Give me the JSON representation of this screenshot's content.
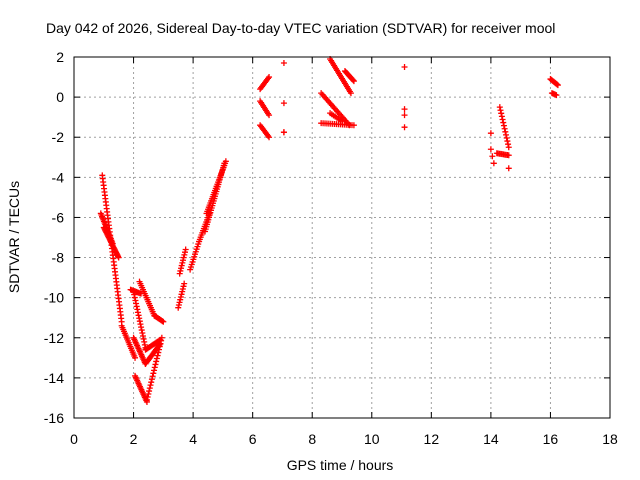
{
  "chart_data": {
    "type": "scatter",
    "title": "Day 042 of 2026, Sidereal Day-to-day VTEC variation (SDTVAR) for receiver mool",
    "xlabel": "GPS time / hours",
    "ylabel": "SDTVAR / TECUs",
    "xlim": [
      0,
      18
    ],
    "ylim": [
      -16,
      2
    ],
    "xticks": [
      0,
      2,
      4,
      6,
      8,
      10,
      12,
      14,
      16,
      18
    ],
    "yticks": [
      -16,
      -14,
      -12,
      -10,
      -8,
      -6,
      -4,
      -2,
      0,
      2
    ],
    "xtick_labels": [
      "0",
      "2",
      "4",
      "6",
      "8",
      "10",
      "12",
      "14",
      "16",
      "18"
    ],
    "ytick_labels": [
      "-16",
      "-14",
      "-12",
      "-10",
      "-8",
      "-6",
      "-4",
      "-2",
      "0",
      "2"
    ],
    "grid": true,
    "marker": "+",
    "marker_color": "#ff0000",
    "series": [
      {
        "name": "SDTVAR",
        "segments": [
          {
            "x0": 0.95,
            "x1": 1.6,
            "y0": -3.9,
            "y1": -11.2,
            "n": 45
          },
          {
            "x0": 1.0,
            "x1": 1.5,
            "y0": -6.5,
            "y1": -8.0,
            "n": 25
          },
          {
            "x0": 0.9,
            "x1": 1.3,
            "y0": -5.8,
            "y1": -7.3,
            "n": 20
          },
          {
            "x0": 1.6,
            "x1": 2.05,
            "y0": -11.4,
            "y1": -13.0,
            "n": 18
          },
          {
            "x0": 2.05,
            "x1": 2.45,
            "y0": -13.9,
            "y1": -15.2,
            "n": 18
          },
          {
            "x0": 2.45,
            "x1": 2.95,
            "y0": -15.1,
            "y1": -12.0,
            "n": 22
          },
          {
            "x0": 2.0,
            "x1": 2.4,
            "y0": -12.0,
            "y1": -13.3,
            "n": 18
          },
          {
            "x0": 2.4,
            "x1": 2.9,
            "y0": -13.3,
            "y1": -12.3,
            "n": 18
          },
          {
            "x0": 2.0,
            "x1": 2.4,
            "y0": -9.7,
            "y1": -12.5,
            "n": 20
          },
          {
            "x0": 2.4,
            "x1": 2.9,
            "y0": -12.6,
            "y1": -12.1,
            "n": 15
          },
          {
            "x0": 1.9,
            "x1": 2.25,
            "y0": -9.6,
            "y1": -9.8,
            "n": 10
          },
          {
            "x0": 2.2,
            "x1": 2.7,
            "y0": -9.2,
            "y1": -10.9,
            "n": 18
          },
          {
            "x0": 2.7,
            "x1": 3.0,
            "y0": -10.9,
            "y1": -11.2,
            "n": 10
          },
          {
            "x0": 3.5,
            "x1": 3.7,
            "y0": -10.5,
            "y1": -9.3,
            "n": 10
          },
          {
            "x0": 3.55,
            "x1": 3.75,
            "y0": -8.8,
            "y1": -7.6,
            "n": 10
          },
          {
            "x0": 3.9,
            "x1": 4.2,
            "y0": -8.6,
            "y1": -7.2,
            "n": 12
          },
          {
            "x0": 4.2,
            "x1": 4.55,
            "y0": -7.2,
            "y1": -5.8,
            "n": 14
          },
          {
            "x0": 4.4,
            "x1": 5.05,
            "y0": -6.7,
            "y1": -3.3,
            "n": 30
          },
          {
            "x0": 4.45,
            "x1": 5.1,
            "y0": -5.8,
            "y1": -3.2,
            "n": 26
          },
          {
            "x0": 6.25,
            "x1": 6.55,
            "y0": 0.4,
            "y1": 1.0,
            "n": 10
          },
          {
            "x0": 6.25,
            "x1": 6.55,
            "y0": -0.2,
            "y1": -0.9,
            "n": 10
          },
          {
            "x0": 6.25,
            "x1": 6.55,
            "y0": -1.4,
            "y1": -2.0,
            "n": 10
          },
          {
            "x0": 7.05,
            "x1": 7.05,
            "y0": 1.7,
            "y1": 1.7,
            "n": 1
          },
          {
            "x0": 7.05,
            "x1": 7.05,
            "y0": -0.3,
            "y1": -0.3,
            "n": 1
          },
          {
            "x0": 7.05,
            "x1": 7.05,
            "y0": -1.75,
            "y1": -1.75,
            "n": 2
          },
          {
            "x0": 8.6,
            "x1": 9.3,
            "y0": 1.9,
            "y1": 0.2,
            "n": 22
          },
          {
            "x0": 8.3,
            "x1": 9.25,
            "y0": 0.2,
            "y1": -1.4,
            "n": 22
          },
          {
            "x0": 9.1,
            "x1": 9.4,
            "y0": 1.3,
            "y1": 0.8,
            "n": 12
          },
          {
            "x0": 8.3,
            "x1": 9.4,
            "y0": -1.3,
            "y1": -1.4,
            "n": 18
          },
          {
            "x0": 8.6,
            "x1": 9.0,
            "y0": -0.8,
            "y1": -1.2,
            "n": 8
          },
          {
            "x0": 11.1,
            "x1": 11.1,
            "y0": 1.5,
            "y1": 1.5,
            "n": 1
          },
          {
            "x0": 11.1,
            "x1": 11.1,
            "y0": -0.6,
            "y1": -0.9,
            "n": 2
          },
          {
            "x0": 11.1,
            "x1": 11.1,
            "y0": -1.5,
            "y1": -1.5,
            "n": 1
          },
          {
            "x0": 14.0,
            "x1": 14.0,
            "y0": -1.8,
            "y1": -1.8,
            "n": 1
          },
          {
            "x0": 14.0,
            "x1": 14.1,
            "y0": -2.6,
            "y1": -3.3,
            "n": 3
          },
          {
            "x0": 14.3,
            "x1": 14.6,
            "y0": -0.5,
            "y1": -2.5,
            "n": 14
          },
          {
            "x0": 14.2,
            "x1": 14.6,
            "y0": -2.8,
            "y1": -2.9,
            "n": 10
          },
          {
            "x0": 14.6,
            "x1": 14.6,
            "y0": -3.55,
            "y1": -3.55,
            "n": 1
          },
          {
            "x0": 16.0,
            "x1": 16.25,
            "y0": 0.9,
            "y1": 0.6,
            "n": 10
          },
          {
            "x0": 16.05,
            "x1": 16.2,
            "y0": 0.2,
            "y1": 0.1,
            "n": 5
          }
        ]
      }
    ]
  }
}
